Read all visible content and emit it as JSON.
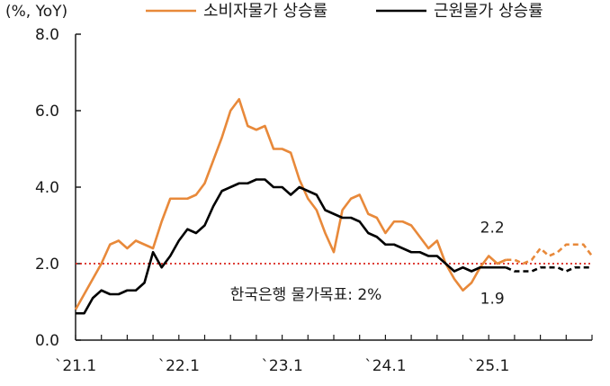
{
  "chart_data": {
    "type": "line",
    "unit_label": "(%, YoY)",
    "ylim": [
      0,
      8
    ],
    "y_ticks": [
      "0.0",
      "2.0",
      "4.0",
      "6.0",
      "8.0"
    ],
    "x_ticks": [
      "`21.1",
      "`22.1",
      "`23.1",
      "`24.1",
      "`25.1"
    ],
    "grid": false,
    "legend_position": "top",
    "series": [
      {
        "name": "소비자물가 상승률",
        "color": "#e8893a",
        "values": [
          0.8,
          1.2,
          1.6,
          2.0,
          2.5,
          2.6,
          2.4,
          2.6,
          2.5,
          2.4,
          3.1,
          3.7,
          3.7,
          3.7,
          3.8,
          4.1,
          4.7,
          5.3,
          6.0,
          6.3,
          5.6,
          5.5,
          5.6,
          5.0,
          5.0,
          4.9,
          4.2,
          3.7,
          3.4,
          2.8,
          2.3,
          3.4,
          3.7,
          3.8,
          3.3,
          3.2,
          2.8,
          3.1,
          3.1,
          3.0,
          2.7,
          2.4,
          2.6,
          2.0,
          1.6,
          1.3,
          1.5,
          1.9,
          2.2,
          2.0,
          2.1,
          2.1,
          2.0,
          2.1,
          2.4,
          2.2,
          2.3,
          2.5,
          2.5,
          2.5,
          2.2
        ],
        "projection_start_index": 50
      },
      {
        "name": "근원물가 상승률",
        "color": "#000000",
        "values": [
          0.7,
          0.7,
          1.1,
          1.3,
          1.2,
          1.2,
          1.3,
          1.3,
          1.5,
          2.3,
          1.9,
          2.2,
          2.6,
          2.9,
          2.8,
          3.0,
          3.5,
          3.9,
          4.0,
          4.1,
          4.1,
          4.2,
          4.2,
          4.0,
          4.0,
          3.8,
          4.0,
          3.9,
          3.8,
          3.4,
          3.3,
          3.2,
          3.2,
          3.1,
          2.8,
          2.7,
          2.5,
          2.5,
          2.4,
          2.3,
          2.3,
          2.2,
          2.2,
          2.0,
          1.8,
          1.9,
          1.8,
          1.9,
          1.9,
          1.9,
          1.9,
          1.8,
          1.8,
          1.8,
          1.9,
          1.9,
          1.9,
          1.8,
          1.9,
          1.9,
          1.9
        ],
        "projection_start_index": 50
      }
    ],
    "target_line": {
      "value": 2.0,
      "color": "#d9261c",
      "label": "한국은행 물가목표: 2%"
    },
    "annotations": [
      {
        "text": "2.2",
        "series": 0,
        "index": 48
      },
      {
        "text": "1.9",
        "series": 1,
        "index": 48
      }
    ]
  }
}
